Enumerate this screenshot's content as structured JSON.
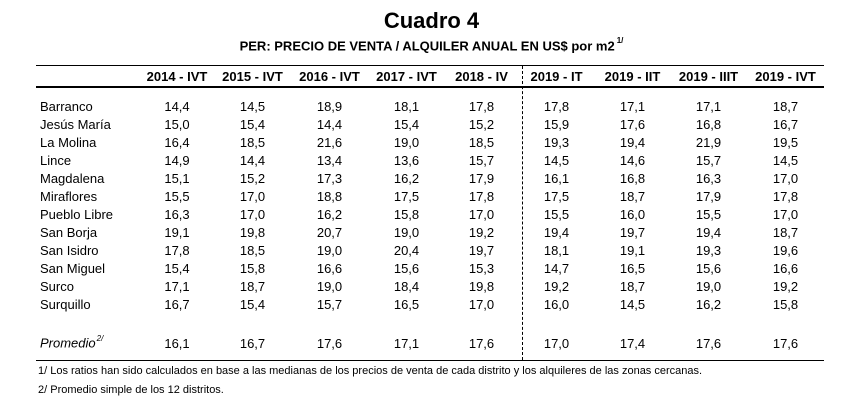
{
  "title": "Cuadro 4",
  "subtitle": "PER: PRECIO DE VENTA / ALQUILER ANUAL EN US$ por m2",
  "subtitle_note": "1/",
  "columns": [
    "2014 - IVT",
    "2015 - IVT",
    "2016 - IVT",
    "2017 - IVT",
    "2018 - IV",
    "2019 - IT",
    "2019 - IIT",
    "2019 - IIIT",
    "2019 - IVT"
  ],
  "rows": [
    {
      "name": "Barranco",
      "values": [
        "14,4",
        "14,5",
        "18,9",
        "18,1",
        "17,8",
        "17,8",
        "17,1",
        "17,1",
        "18,7"
      ]
    },
    {
      "name": "Jesús María",
      "values": [
        "15,0",
        "15,4",
        "14,4",
        "15,4",
        "15,2",
        "15,9",
        "17,6",
        "16,8",
        "16,7"
      ]
    },
    {
      "name": "La Molina",
      "values": [
        "16,4",
        "18,5",
        "21,6",
        "19,0",
        "18,5",
        "19,3",
        "19,4",
        "21,9",
        "19,5"
      ]
    },
    {
      "name": "Lince",
      "values": [
        "14,9",
        "14,4",
        "13,4",
        "13,6",
        "15,7",
        "14,5",
        "14,6",
        "15,7",
        "14,5"
      ]
    },
    {
      "name": "Magdalena",
      "values": [
        "15,1",
        "15,2",
        "17,3",
        "16,2",
        "17,9",
        "16,1",
        "16,8",
        "16,3",
        "17,0"
      ]
    },
    {
      "name": "Miraflores",
      "values": [
        "15,5",
        "17,0",
        "18,8",
        "17,5",
        "17,8",
        "17,5",
        "18,7",
        "17,9",
        "17,8"
      ]
    },
    {
      "name": "Pueblo Libre",
      "values": [
        "16,3",
        "17,0",
        "16,2",
        "15,8",
        "17,0",
        "15,5",
        "16,0",
        "15,5",
        "17,0"
      ]
    },
    {
      "name": "San Borja",
      "values": [
        "19,1",
        "19,8",
        "20,7",
        "19,0",
        "19,2",
        "19,4",
        "19,7",
        "19,4",
        "18,7"
      ]
    },
    {
      "name": "San Isidro",
      "values": [
        "17,8",
        "18,5",
        "19,0",
        "20,4",
        "19,7",
        "18,1",
        "19,1",
        "19,3",
        "19,6"
      ]
    },
    {
      "name": "San Miguel",
      "values": [
        "15,4",
        "15,8",
        "16,6",
        "15,6",
        "15,3",
        "14,7",
        "16,5",
        "15,6",
        "16,6"
      ]
    },
    {
      "name": "Surco",
      "values": [
        "17,1",
        "18,7",
        "19,0",
        "18,4",
        "19,8",
        "19,2",
        "18,7",
        "19,0",
        "19,2"
      ]
    },
    {
      "name": "Surquillo",
      "values": [
        "16,7",
        "15,4",
        "15,7",
        "16,5",
        "17,0",
        "16,0",
        "14,5",
        "16,2",
        "15,8"
      ]
    }
  ],
  "average": {
    "label": "Promedio",
    "note": "2/",
    "values": [
      "16,1",
      "16,7",
      "17,6",
      "17,1",
      "17,6",
      "17,0",
      "17,4",
      "17,6",
      "17,6"
    ]
  },
  "notes": [
    "1/ Los ratios han sido calculados en base a las medianas de los precios de venta de cada distrito y los alquileres de las zonas cercanas.",
    "2/ Promedio simple de los 12 distritos."
  ]
}
